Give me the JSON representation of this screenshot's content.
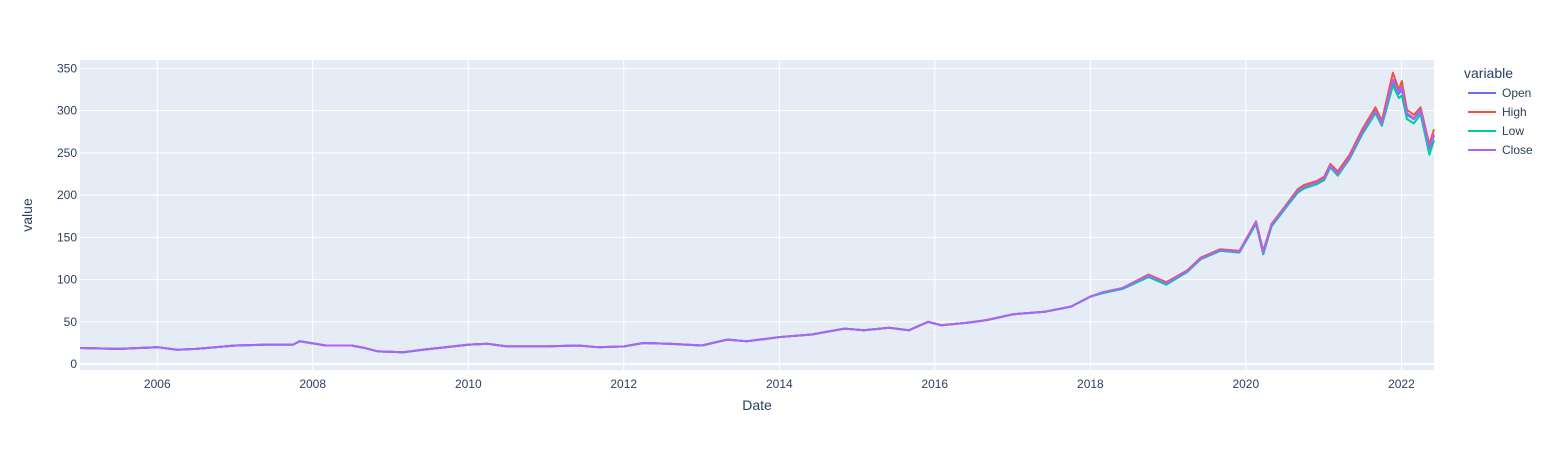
{
  "chart_data": {
    "type": "line",
    "xlabel": "Date",
    "ylabel": "value",
    "legend_title": "variable",
    "legend_position": "right",
    "grid": true,
    "xlim": [
      "2005-01-03",
      "2022-06-03"
    ],
    "ylim": [
      -7,
      360
    ],
    "x_ticks": [
      {
        "value": "2006-01-01",
        "label": "2006"
      },
      {
        "value": "2008-01-01",
        "label": "2008"
      },
      {
        "value": "2010-01-01",
        "label": "2010"
      },
      {
        "value": "2012-01-01",
        "label": "2012"
      },
      {
        "value": "2014-01-01",
        "label": "2014"
      },
      {
        "value": "2016-01-01",
        "label": "2016"
      },
      {
        "value": "2018-01-01",
        "label": "2018"
      },
      {
        "value": "2020-01-01",
        "label": "2020"
      },
      {
        "value": "2022-01-01",
        "label": "2022"
      }
    ],
    "y_ticks": [
      0,
      50,
      100,
      150,
      200,
      250,
      300,
      350
    ],
    "x": [
      "2005-01-03",
      "2005-07-01",
      "2006-01-03",
      "2006-04-03",
      "2006-07-03",
      "2007-01-03",
      "2007-06-01",
      "2007-10-01",
      "2007-11-01",
      "2008-03-03",
      "2008-07-01",
      "2008-09-02",
      "2008-11-03",
      "2009-03-02",
      "2009-06-01",
      "2010-01-04",
      "2010-04-01",
      "2010-07-01",
      "2011-01-03",
      "2011-06-01",
      "2011-09-01",
      "2012-01-03",
      "2012-04-02",
      "2012-08-01",
      "2013-01-02",
      "2013-05-01",
      "2013-08-01",
      "2014-01-02",
      "2014-06-02",
      "2014-11-03",
      "2015-02-02",
      "2015-06-01",
      "2015-09-01",
      "2015-12-01",
      "2016-02-01",
      "2016-06-01",
      "2016-09-01",
      "2017-01-03",
      "2017-06-01",
      "2017-10-02",
      "2018-01-02",
      "2018-03-01",
      "2018-06-01",
      "2018-10-01",
      "2018-12-24",
      "2019-04-01",
      "2019-06-03",
      "2019-09-03",
      "2019-12-02",
      "2020-02-18",
      "2020-03-23",
      "2020-05-01",
      "2020-07-01",
      "2020-09-01",
      "2020-10-01",
      "2020-12-01",
      "2021-01-04",
      "2021-02-01",
      "2021-03-08",
      "2021-05-03",
      "2021-07-01",
      "2021-09-01",
      "2021-10-01",
      "2021-11-22",
      "2021-12-20",
      "2022-01-03",
      "2022-01-27",
      "2022-03-01",
      "2022-04-01",
      "2022-05-12",
      "2022-06-03"
    ],
    "series": [
      {
        "name": "Open",
        "color": "#636efa",
        "values": [
          19,
          18,
          20,
          17,
          18,
          22,
          23,
          23,
          27,
          22,
          22,
          19,
          15,
          14,
          17,
          23,
          24,
          21,
          21,
          22,
          20,
          21,
          25,
          24,
          22,
          29,
          27,
          32,
          35,
          42,
          40,
          43,
          40,
          50,
          46,
          49,
          52,
          59,
          62,
          68,
          80,
          85,
          90,
          105,
          96,
          110,
          125,
          135,
          133,
          168,
          132,
          165,
          185,
          205,
          210,
          215,
          220,
          235,
          225,
          245,
          275,
          300,
          285,
          335,
          320,
          325,
          295,
          290,
          300,
          255,
          270
        ]
      },
      {
        "name": "High",
        "color": "#ef553b",
        "values": [
          19,
          18,
          20,
          17,
          18,
          22,
          23,
          23,
          27,
          22,
          22,
          19,
          15,
          14,
          17,
          23,
          24,
          21,
          21,
          22,
          20,
          21,
          25,
          24,
          22,
          29,
          27,
          32,
          35,
          42,
          40,
          43,
          40,
          50,
          46,
          49,
          52,
          59,
          62,
          68,
          80,
          85,
          90,
          106,
          97,
          111,
          126,
          136,
          134,
          169,
          134,
          166,
          186,
          207,
          212,
          217,
          222,
          237,
          228,
          248,
          278,
          304,
          288,
          345,
          325,
          335,
          301,
          295,
          304,
          260,
          278
        ]
      },
      {
        "name": "Low",
        "color": "#00cc96",
        "values": [
          19,
          18,
          20,
          17,
          18,
          22,
          23,
          23,
          27,
          22,
          22,
          19,
          15,
          14,
          17,
          23,
          24,
          21,
          21,
          22,
          20,
          21,
          25,
          24,
          22,
          29,
          27,
          32,
          35,
          42,
          40,
          43,
          40,
          50,
          46,
          49,
          52,
          59,
          62,
          68,
          80,
          84,
          89,
          103,
          94,
          109,
          124,
          134,
          132,
          166,
          130,
          163,
          183,
          203,
          208,
          213,
          218,
          233,
          223,
          243,
          272,
          297,
          282,
          330,
          315,
          318,
          290,
          285,
          296,
          248,
          265
        ]
      },
      {
        "name": "Close",
        "color": "#ab63fa",
        "values": [
          19,
          18,
          20,
          17,
          18,
          22,
          23,
          23,
          27,
          22,
          22,
          19,
          15,
          14,
          17,
          23,
          24,
          21,
          21,
          22,
          20,
          21,
          25,
          24,
          22,
          29,
          27,
          32,
          35,
          42,
          40,
          43,
          40,
          50,
          46,
          49,
          52,
          59,
          62,
          68,
          80,
          85,
          90,
          105,
          96,
          110,
          125,
          135,
          133,
          168,
          132,
          165,
          185,
          205,
          210,
          215,
          220,
          235,
          225,
          245,
          275,
          300,
          285,
          337,
          322,
          328,
          297,
          291,
          301,
          256,
          272
        ]
      }
    ]
  }
}
